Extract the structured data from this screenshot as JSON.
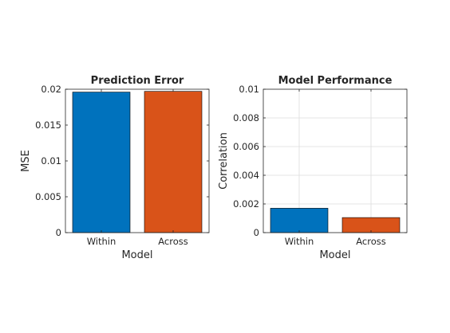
{
  "chart_data": [
    {
      "type": "bar",
      "title": "Prediction Error",
      "xlabel": "Model",
      "ylabel": "MSE",
      "categories": [
        "Within",
        "Across"
      ],
      "values": [
        0.0196,
        0.0197
      ],
      "colors": [
        "#0072bd",
        "#d95319"
      ],
      "ylim": [
        0,
        0.02
      ],
      "yticks": [
        0,
        0.005,
        0.01,
        0.015,
        0.02
      ],
      "ytick_labels": [
        "0",
        "0.005",
        "0.01",
        "0.015",
        "0.02"
      ],
      "grid": false
    },
    {
      "type": "bar",
      "title": "Model Performance",
      "xlabel": "Model",
      "ylabel": "Correlation",
      "categories": [
        "Within",
        "Across"
      ],
      "values": [
        0.0017,
        0.00105
      ],
      "colors": [
        "#0072bd",
        "#d95319"
      ],
      "ylim": [
        0,
        0.01
      ],
      "yticks": [
        0,
        0.002,
        0.004,
        0.006,
        0.008,
        0.01
      ],
      "ytick_labels": [
        "0",
        "0.002",
        "0.004",
        "0.006",
        "0.008",
        "0.01"
      ],
      "grid": true
    }
  ]
}
